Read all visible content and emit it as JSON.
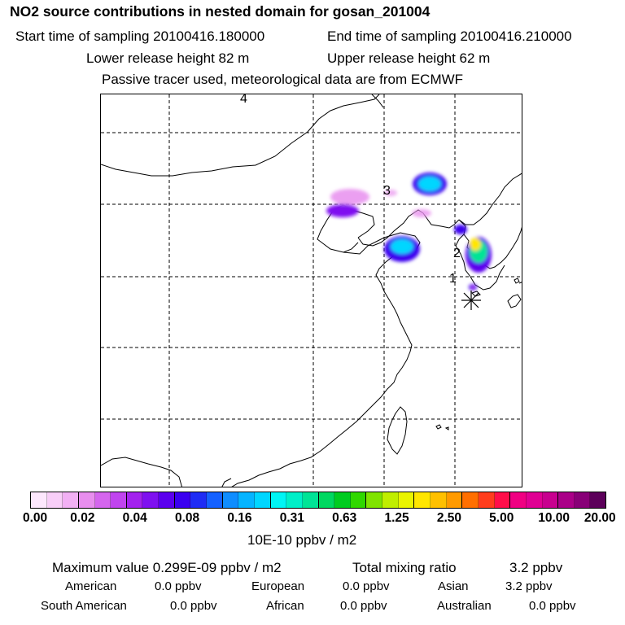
{
  "header": {
    "title": "NO2 source contributions in nested domain for gosan_201004",
    "start_sampling": "Start time of sampling 20100416.180000",
    "end_sampling": "End time of sampling 20100416.210000",
    "lower_release": "Lower release height   82 m",
    "upper_release": "Upper release height   62 m",
    "note": "Passive tracer used, meteorological data are from ECMWF"
  },
  "map": {
    "source_labels": [
      "1",
      "2",
      "3",
      "4"
    ],
    "station_marker": "receptor-star"
  },
  "colorbar": {
    "colors": [
      "#fde7fd",
      "#f8cef8",
      "#f2b0f4",
      "#e88eee",
      "#d566ee",
      "#c044ee",
      "#a322ee",
      "#7f11f0",
      "#5b00ee",
      "#3a00f0",
      "#1f2cf5",
      "#1561ff",
      "#0f8dff",
      "#05b4ff",
      "#00d6ff",
      "#00f5f5",
      "#00efc8",
      "#00e496",
      "#00d860",
      "#00cc20",
      "#30d800",
      "#80e400",
      "#c0ee00",
      "#eaf400",
      "#ffe600",
      "#ffc000",
      "#ff9a00",
      "#ff6f00",
      "#ff3d1d",
      "#ff0e4a",
      "#f00082",
      "#e00093",
      "#c8008f",
      "#aa0088",
      "#880077",
      "#5c005a"
    ],
    "ticks": [
      "0.00",
      "0.02",
      "0.04",
      "0.08",
      "0.16",
      "0.31",
      "0.63",
      "1.25",
      "2.50",
      "5.00",
      "10.00",
      "20.00"
    ],
    "units": "10E-10 ppbv / m2"
  },
  "footer": {
    "max_value": "Maximum value  0.299E-09 ppbv / m2",
    "total_mixing": "Total mixing ratio",
    "total_value": "3.2 ppbv",
    "rows": [
      {
        "label": "American",
        "value": "0.0 ppbv"
      },
      {
        "label": "European",
        "value": "0.0 ppbv"
      },
      {
        "label": "Asian",
        "value": "3.2 ppbv"
      },
      {
        "label": "South American",
        "value": "0.0 ppbv"
      },
      {
        "label": "African",
        "value": "0.0 ppbv"
      },
      {
        "label": "Australian",
        "value": "0.0 ppbv"
      }
    ]
  }
}
